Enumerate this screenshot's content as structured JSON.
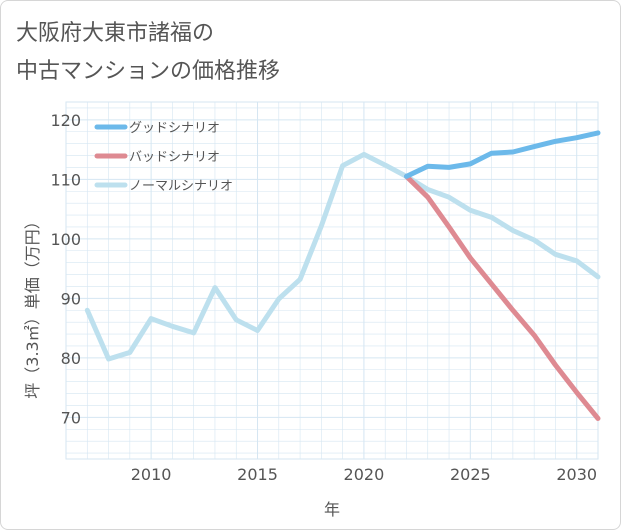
{
  "title": {
    "line1": "大阪府大東市諸福の",
    "line2": "中古マンションの価格推移"
  },
  "colors": {
    "good": "#6cb9ea",
    "bad": "#de8a92",
    "normal": "#bde0ee",
    "grid": "#d5e6f2",
    "text": "#555555"
  },
  "chart_data": {
    "type": "line",
    "title": "大阪府大東市諸福の中古マンションの価格推移",
    "xlabel": "年",
    "ylabel": "坪（3.3㎡）単価（万円）",
    "xlim": [
      2006,
      2031
    ],
    "ylim": [
      63,
      123
    ],
    "xticks": [
      2010,
      2015,
      2020,
      2025,
      2030
    ],
    "yticks": [
      70,
      80,
      90,
      100,
      110,
      120
    ],
    "grid": true,
    "legend_position": "top-left",
    "series": [
      {
        "name": "グッドシナリオ",
        "color_key": "good",
        "x": [
          2022,
          2023,
          2024,
          2025,
          2026,
          2027,
          2028,
          2029,
          2030,
          2031
        ],
        "y": [
          110.5,
          112.2,
          112.0,
          112.6,
          114.4,
          114.6,
          115.5,
          116.4,
          117.0,
          117.8
        ]
      },
      {
        "name": "バッドシナリオ",
        "color_key": "bad",
        "x": [
          2022,
          2023,
          2024,
          2025,
          2026,
          2027,
          2028,
          2029,
          2030,
          2031
        ],
        "y": [
          110.5,
          107.0,
          102.0,
          96.8,
          92.4,
          88.0,
          83.8,
          78.8,
          74.2,
          69.8
        ]
      },
      {
        "name": "ノーマルシナリオ",
        "color_key": "normal",
        "x": [
          2007,
          2008,
          2009,
          2010,
          2011,
          2012,
          2013,
          2014,
          2015,
          2016,
          2017,
          2018,
          2019,
          2020,
          2021,
          2022,
          2023,
          2024,
          2025,
          2026,
          2027,
          2028,
          2029,
          2030,
          2031
        ],
        "y": [
          88.0,
          79.8,
          80.9,
          86.6,
          85.3,
          84.2,
          91.8,
          86.4,
          84.6,
          89.9,
          93.2,
          102.2,
          112.3,
          114.2,
          112.4,
          110.5,
          108.3,
          107.0,
          104.8,
          103.6,
          101.4,
          99.8,
          97.4,
          96.3,
          93.6
        ]
      }
    ]
  }
}
